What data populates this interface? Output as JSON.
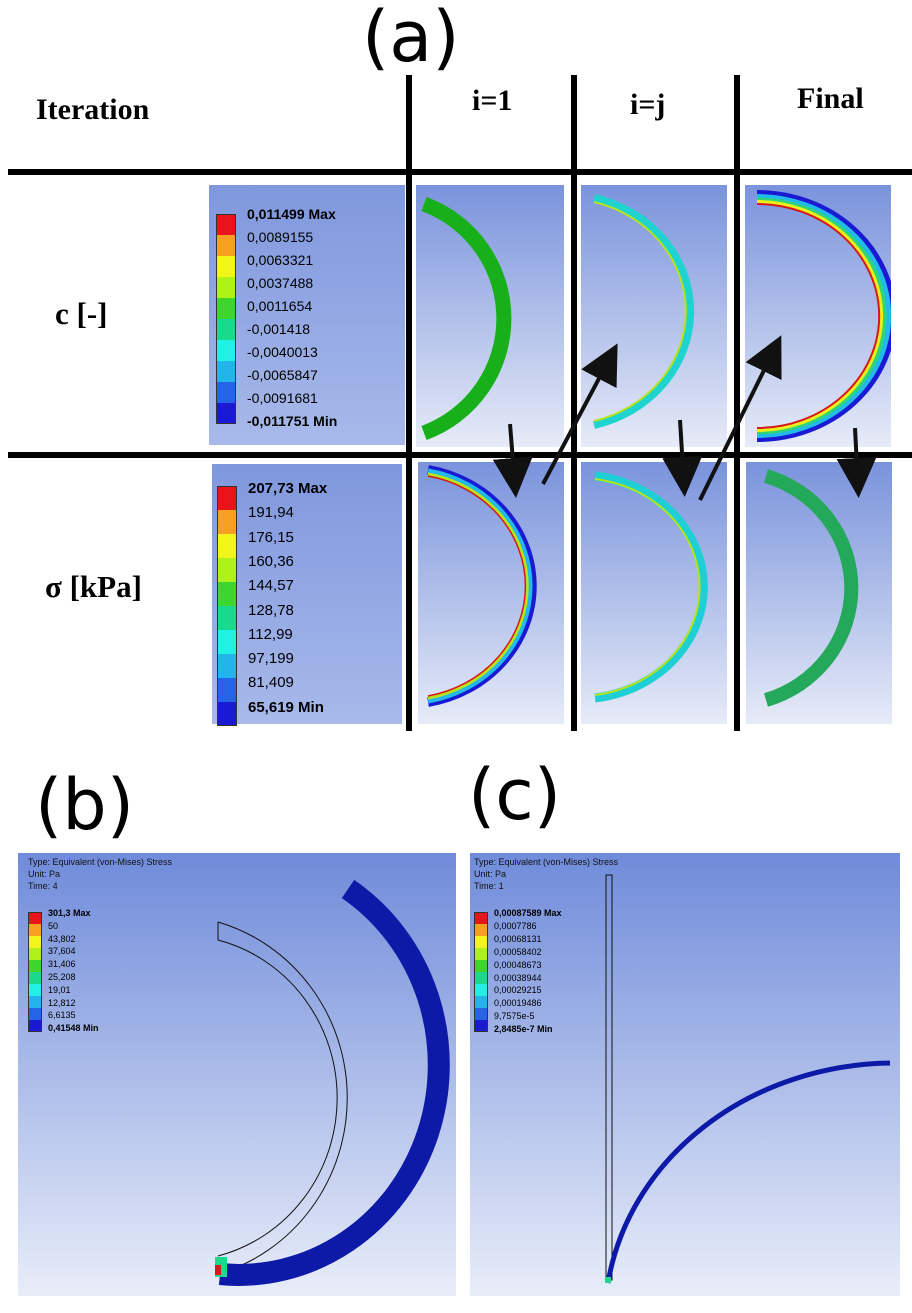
{
  "panel_labels": {
    "a": "(a)",
    "b": "(b)",
    "c": "(c)"
  },
  "grid": {
    "row_header": "Iteration",
    "columns": [
      "i=1",
      "i=j",
      "Final"
    ],
    "rows": [
      "c [-]",
      "σ [kPa]"
    ]
  },
  "legend_c": {
    "labels": [
      "0,011499 Max",
      "0,0089155",
      "0,0063321",
      "0,0037488",
      "0,0011654",
      "-0,001418",
      "-0,0040013",
      "-0,0065847",
      "-0,0091681",
      "-0,011751 Min"
    ],
    "colors": [
      "#e8141b",
      "#f5a020",
      "#f1f51a",
      "#aef21a",
      "#3ed52e",
      "#1ad98c",
      "#22efe5",
      "#25b3eb",
      "#2564e6",
      "#1a1ad3"
    ]
  },
  "legend_sigma": {
    "labels": [
      "207,73 Max",
      "191,94",
      "176,15",
      "160,36",
      "144,57",
      "128,78",
      "112,99",
      "97,199",
      "81,409",
      "65,619 Min"
    ],
    "colors": [
      "#e8141b",
      "#f5a020",
      "#f1f51a",
      "#aef21a",
      "#3ed52e",
      "#1ad98c",
      "#22efe5",
      "#25b3eb",
      "#2564e6",
      "#1a1ad3"
    ]
  },
  "panel_b": {
    "type_line": "Type: Equivalent (von-Mises) Stress",
    "unit_line": "Unit: Pa",
    "time_line": "Time: 4",
    "labels": [
      "301,3 Max",
      "50",
      "43,802",
      "37,604",
      "31,406",
      "25,208",
      "19,01",
      "12,812",
      "6,6135",
      "0,41548 Min"
    ],
    "colors": [
      "#e8141b",
      "#f5a020",
      "#f1f51a",
      "#aef21a",
      "#3ed52e",
      "#1ad98c",
      "#22efe5",
      "#25b3eb",
      "#2564e6",
      "#1a1ad3"
    ]
  },
  "panel_c": {
    "type_line": "Type: Equivalent (von-Mises) Stress",
    "unit_line": "Unit: Pa",
    "time_line": "Time: 1",
    "labels": [
      "0,00087589 Max",
      "0,0007786",
      "0,00068131",
      "0,00058402",
      "0,00048673",
      "0,00038944",
      "0,00029215",
      "0,00019486",
      "9,7575e-5",
      "2,8485e-7 Min"
    ],
    "colors": [
      "#e8141b",
      "#f5a020",
      "#f1f51a",
      "#aef21a",
      "#3ed52e",
      "#1ad98c",
      "#22efe5",
      "#25b3eb",
      "#2564e6",
      "#1a1ad3"
    ]
  }
}
